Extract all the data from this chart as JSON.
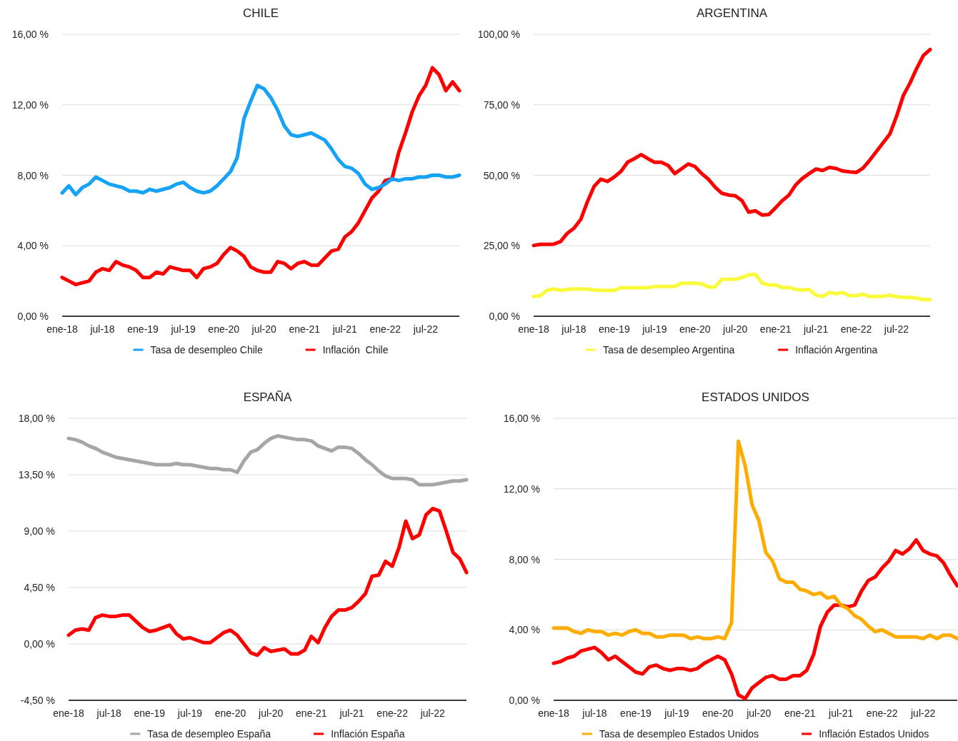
{
  "chart_data": [
    {
      "type": "line",
      "title": "CHILE",
      "categories": [
        "ene-18",
        null,
        null,
        null,
        null,
        null,
        "jul-18",
        null,
        null,
        null,
        null,
        null,
        "ene-19",
        null,
        null,
        null,
        null,
        null,
        "jul-19",
        null,
        null,
        null,
        null,
        null,
        "ene-20",
        null,
        null,
        null,
        null,
        null,
        "jul-20",
        null,
        null,
        null,
        null,
        null,
        "ene-21",
        null,
        null,
        null,
        null,
        null,
        "jul-21",
        null,
        null,
        null,
        null,
        null,
        "ene-22",
        null,
        null,
        null,
        null,
        null,
        "jul-22",
        null,
        null,
        null,
        null,
        null
      ],
      "series": [
        {
          "name": "Tasa de desempleo Chile",
          "color": "#16a2f7",
          "values": [
            7.0,
            7.4,
            6.9,
            7.3,
            7.5,
            7.9,
            7.7,
            7.5,
            7.4,
            7.3,
            7.1,
            7.1,
            7.0,
            7.2,
            7.1,
            7.2,
            7.3,
            7.5,
            7.6,
            7.3,
            7.1,
            7.0,
            7.1,
            7.4,
            7.8,
            8.2,
            9.0,
            11.2,
            12.2,
            13.1,
            12.9,
            12.4,
            11.7,
            10.8,
            10.3,
            10.2,
            10.3,
            10.4,
            10.2,
            10.0,
            9.5,
            8.9,
            8.5,
            8.4,
            8.1,
            7.5,
            7.2,
            7.3,
            7.5,
            7.8,
            7.7,
            7.8,
            7.8,
            7.9,
            7.9,
            8.0,
            8.0,
            7.9,
            7.9,
            8.0
          ]
        },
        {
          "name": "Inflación  Chile",
          "color": "#ff0000",
          "values": [
            2.2,
            2.0,
            1.8,
            1.9,
            2.0,
            2.5,
            2.7,
            2.6,
            3.1,
            2.9,
            2.8,
            2.6,
            2.2,
            2.2,
            2.5,
            2.4,
            2.8,
            2.7,
            2.6,
            2.6,
            2.2,
            2.7,
            2.8,
            3.0,
            3.5,
            3.9,
            3.7,
            3.4,
            2.8,
            2.6,
            2.5,
            2.5,
            3.1,
            3.0,
            2.7,
            3.0,
            3.1,
            2.9,
            2.9,
            3.3,
            3.7,
            3.8,
            4.5,
            4.8,
            5.3,
            6.0,
            6.7,
            7.1,
            7.7,
            7.8,
            9.3,
            10.4,
            11.6,
            12.5,
            13.1,
            14.1,
            13.7,
            12.8,
            13.3,
            12.8
          ]
        }
      ],
      "ylim": [
        0,
        16
      ],
      "yticks": [
        {
          "value": 0,
          "label": "0,00 %"
        },
        {
          "value": 4,
          "label": "4,00 %"
        },
        {
          "value": 8,
          "label": "8,00 %"
        },
        {
          "value": 12,
          "label": "12,00 %"
        },
        {
          "value": 16,
          "label": "16,00 %"
        }
      ],
      "grid": "y",
      "legend": "bottom"
    },
    {
      "type": "line",
      "title": "ARGENTINA",
      "categories": [
        "ene-18",
        null,
        null,
        null,
        null,
        null,
        "jul-18",
        null,
        null,
        null,
        null,
        null,
        "ene-19",
        null,
        null,
        null,
        null,
        null,
        "jul-19",
        null,
        null,
        null,
        null,
        null,
        "ene-20",
        null,
        null,
        null,
        null,
        null,
        "jul-20",
        null,
        null,
        null,
        null,
        null,
        "ene-21",
        null,
        null,
        null,
        null,
        null,
        "jul-21",
        null,
        null,
        null,
        null,
        null,
        "ene-22",
        null,
        null,
        null,
        null,
        null,
        "jul-22",
        null,
        null,
        null,
        null,
        null
      ],
      "series": [
        {
          "name": "Tasa de desempleo Argentina",
          "color": "#fafa3c",
          "values": [
            7.0,
            7.3,
            9.2,
            9.7,
            9.2,
            9.5,
            9.7,
            9.7,
            9.6,
            9.3,
            9.2,
            9.2,
            9.2,
            10.1,
            10.1,
            10.1,
            10.1,
            10.1,
            10.6,
            10.6,
            10.6,
            10.6,
            11.7,
            11.7,
            11.7,
            11.5,
            10.4,
            10.4,
            13.1,
            13.1,
            13.1,
            13.7,
            14.7,
            14.9,
            11.7,
            11.1,
            11.1,
            10.2,
            10.2,
            9.5,
            9.3,
            9.5,
            7.5,
            7.0,
            8.4,
            8.0,
            8.4,
            7.3,
            7.3,
            7.8,
            7.0,
            7.0,
            7.0,
            7.5,
            6.9,
            6.7,
            6.7,
            6.4,
            5.9,
            5.9
          ]
        },
        {
          "name": "Inflación Argentina",
          "color": "#ff0000",
          "values": [
            25.1,
            25.5,
            25.5,
            25.6,
            26.5,
            29.4,
            31.2,
            34.3,
            40.6,
            46.1,
            48.6,
            47.8,
            49.4,
            51.4,
            54.7,
            55.9,
            57.3,
            55.9,
            54.6,
            54.6,
            53.5,
            50.6,
            52.3,
            54.0,
            53.1,
            50.6,
            48.6,
            45.8,
            43.6,
            43.0,
            42.7,
            41.0,
            36.9,
            37.4,
            35.9,
            36.1,
            38.5,
            41.0,
            43.0,
            46.6,
            48.9,
            50.6,
            52.2,
            51.7,
            52.8,
            52.4,
            51.5,
            51.2,
            51.0,
            52.5,
            55.3,
            58.4,
            61.5,
            64.6,
            70.9,
            78.2,
            82.7,
            87.9,
            92.5,
            94.6
          ]
        }
      ],
      "ylim": [
        0,
        100
      ],
      "yticks": [
        {
          "value": 0,
          "label": "0,00 %"
        },
        {
          "value": 25,
          "label": "25,00 %"
        },
        {
          "value": 50,
          "label": "50,00 %"
        },
        {
          "value": 75,
          "label": "75,00 %"
        },
        {
          "value": 100,
          "label": "100,00 %"
        }
      ],
      "grid": "y",
      "legend": "bottom"
    },
    {
      "type": "line",
      "title": "ESPAÑA",
      "categories": [
        "ene-18",
        null,
        null,
        null,
        null,
        null,
        "jul-18",
        null,
        null,
        null,
        null,
        null,
        "ene-19",
        null,
        null,
        null,
        null,
        null,
        "jul-19",
        null,
        null,
        null,
        null,
        null,
        "ene-20",
        null,
        null,
        null,
        null,
        null,
        "jul-20",
        null,
        null,
        null,
        null,
        null,
        "ene-21",
        null,
        null,
        null,
        null,
        null,
        "jul-21",
        null,
        null,
        null,
        null,
        null,
        "ene-22",
        null,
        null,
        null,
        null,
        null,
        "jul-22",
        null,
        null,
        null,
        null,
        null
      ],
      "series": [
        {
          "name": "Tasa de desempleo España",
          "color": "#a6a6a6",
          "values": [
            16.4,
            16.3,
            16.1,
            15.8,
            15.6,
            15.3,
            15.1,
            14.9,
            14.8,
            14.7,
            14.6,
            14.5,
            14.4,
            14.3,
            14.3,
            14.3,
            14.4,
            14.3,
            14.3,
            14.2,
            14.1,
            14.0,
            14.0,
            13.9,
            13.9,
            13.7,
            14.6,
            15.3,
            15.5,
            16.0,
            16.4,
            16.6,
            16.5,
            16.4,
            16.3,
            16.3,
            16.2,
            15.8,
            15.6,
            15.4,
            15.7,
            15.7,
            15.6,
            15.2,
            14.7,
            14.3,
            13.8,
            13.4,
            13.2,
            13.2,
            13.2,
            13.1,
            12.7,
            12.7,
            12.7,
            12.8,
            12.9,
            13.0,
            13.0,
            13.1
          ]
        },
        {
          "name": "Inflación España",
          "color": "#ff0000",
          "values": [
            0.7,
            1.1,
            1.2,
            1.1,
            2.1,
            2.3,
            2.2,
            2.2,
            2.3,
            2.3,
            1.8,
            1.3,
            1.0,
            1.1,
            1.3,
            1.5,
            0.8,
            0.4,
            0.5,
            0.3,
            0.1,
            0.1,
            0.5,
            0.9,
            1.1,
            0.7,
            0.0,
            -0.7,
            -0.9,
            -0.3,
            -0.6,
            -0.5,
            -0.4,
            -0.8,
            -0.8,
            -0.5,
            0.6,
            0.1,
            1.3,
            2.2,
            2.7,
            2.7,
            2.9,
            3.4,
            4.0,
            5.4,
            5.5,
            6.6,
            6.2,
            7.7,
            9.8,
            8.4,
            8.7,
            10.3,
            10.8,
            10.6,
            9.0,
            7.3,
            6.8,
            5.7
          ]
        }
      ],
      "ylim": [
        -4.5,
        18
      ],
      "yticks": [
        {
          "value": -4.5,
          "label": "-4,50 %"
        },
        {
          "value": 0,
          "label": "0,00 %"
        },
        {
          "value": 4.5,
          "label": "4,50 %"
        },
        {
          "value": 9,
          "label": "9,00 %"
        },
        {
          "value": 13.5,
          "label": "13,50 %"
        },
        {
          "value": 18,
          "label": "18,00 %"
        }
      ],
      "grid": "y",
      "legend": "bottom"
    },
    {
      "type": "line",
      "title": "ESTADOS UNIDOS",
      "categories": [
        "ene-18",
        null,
        null,
        null,
        null,
        null,
        "jul-18",
        null,
        null,
        null,
        null,
        null,
        "ene-19",
        null,
        null,
        null,
        null,
        null,
        "jul-19",
        null,
        null,
        null,
        null,
        null,
        "ene-20",
        null,
        null,
        null,
        null,
        null,
        "jul-20",
        null,
        null,
        null,
        null,
        null,
        "ene-21",
        null,
        null,
        null,
        null,
        null,
        "jul-21",
        null,
        null,
        null,
        null,
        null,
        "ene-22",
        null,
        null,
        null,
        null,
        null,
        "jul-22",
        null,
        null,
        null,
        null,
        null
      ],
      "series": [
        {
          "name": "Tasa de desempleo Estados Unidos",
          "color": "#ffac00",
          "values": [
            4.1,
            4.1,
            4.1,
            3.9,
            3.8,
            4.0,
            3.9,
            3.9,
            3.7,
            3.8,
            3.7,
            3.9,
            4.0,
            3.8,
            3.8,
            3.6,
            3.6,
            3.7,
            3.7,
            3.7,
            3.5,
            3.6,
            3.5,
            3.5,
            3.6,
            3.5,
            4.4,
            14.7,
            13.3,
            11.1,
            10.2,
            8.4,
            7.9,
            6.9,
            6.7,
            6.7,
            6.3,
            6.2,
            6.0,
            6.1,
            5.8,
            5.9,
            5.4,
            5.2,
            4.8,
            4.6,
            4.2,
            3.9,
            4.0,
            3.8,
            3.6,
            3.6,
            3.6,
            3.6,
            3.5,
            3.7,
            3.5,
            3.7,
            3.7,
            3.5
          ]
        },
        {
          "name": "Inflación Estados Unidos",
          "color": "#ff0000",
          "values": [
            2.1,
            2.2,
            2.4,
            2.5,
            2.8,
            2.9,
            3.0,
            2.7,
            2.3,
            2.5,
            2.2,
            1.9,
            1.6,
            1.5,
            1.9,
            2.0,
            1.8,
            1.7,
            1.8,
            1.8,
            1.7,
            1.8,
            2.1,
            2.3,
            2.5,
            2.3,
            1.5,
            0.3,
            0.1,
            0.7,
            1.0,
            1.3,
            1.4,
            1.2,
            1.2,
            1.4,
            1.4,
            1.7,
            2.6,
            4.2,
            5.0,
            5.4,
            5.4,
            5.3,
            5.4,
            6.2,
            6.8,
            7.0,
            7.5,
            7.9,
            8.5,
            8.3,
            8.6,
            9.1,
            8.5,
            8.3,
            8.2,
            7.8,
            7.1,
            6.5
          ]
        }
      ],
      "ylim": [
        0,
        16
      ],
      "yticks": [
        {
          "value": 0,
          "label": "0,00 %"
        },
        {
          "value": 4,
          "label": "4,00 %"
        },
        {
          "value": 8,
          "label": "8,00 %"
        },
        {
          "value": 12,
          "label": "12,00 %"
        },
        {
          "value": 16,
          "label": "16,00 %"
        }
      ],
      "grid": "y",
      "legend": "bottom"
    }
  ]
}
